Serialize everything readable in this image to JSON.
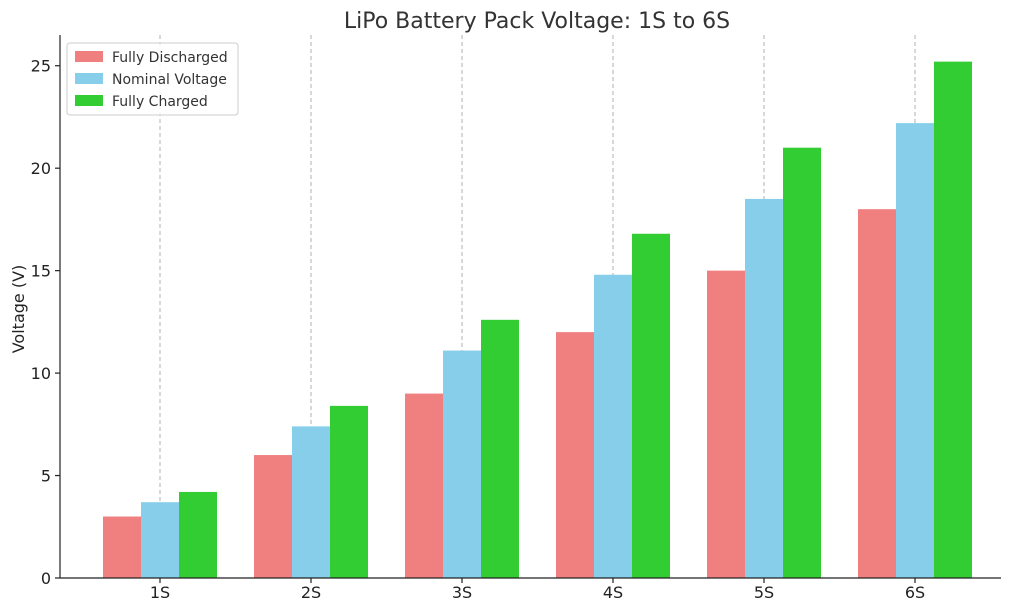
{
  "chart_data": {
    "type": "bar",
    "title": "LiPo Battery Pack Voltage: 1S to 6S",
    "xlabel": "",
    "ylabel": "Voltage (V)",
    "categories": [
      "1S",
      "2S",
      "3S",
      "4S",
      "5S",
      "6S"
    ],
    "series": [
      {
        "name": "Fully Discharged",
        "color": "#f08080",
        "values": [
          3.0,
          6.0,
          9.0,
          12.0,
          15.0,
          18.0
        ]
      },
      {
        "name": "Nominal Voltage",
        "color": "#87ceeb",
        "values": [
          3.7,
          7.4,
          11.1,
          14.8,
          18.5,
          22.2
        ]
      },
      {
        "name": "Fully Charged",
        "color": "#32cd32",
        "values": [
          4.2,
          8.4,
          12.6,
          16.8,
          21.0,
          25.2
        ]
      }
    ],
    "ylim": [
      0,
      26.5
    ],
    "yticks": [
      0,
      5,
      10,
      15,
      20,
      25
    ],
    "grid": "vertical dashed",
    "legend_position": "top-left"
  }
}
